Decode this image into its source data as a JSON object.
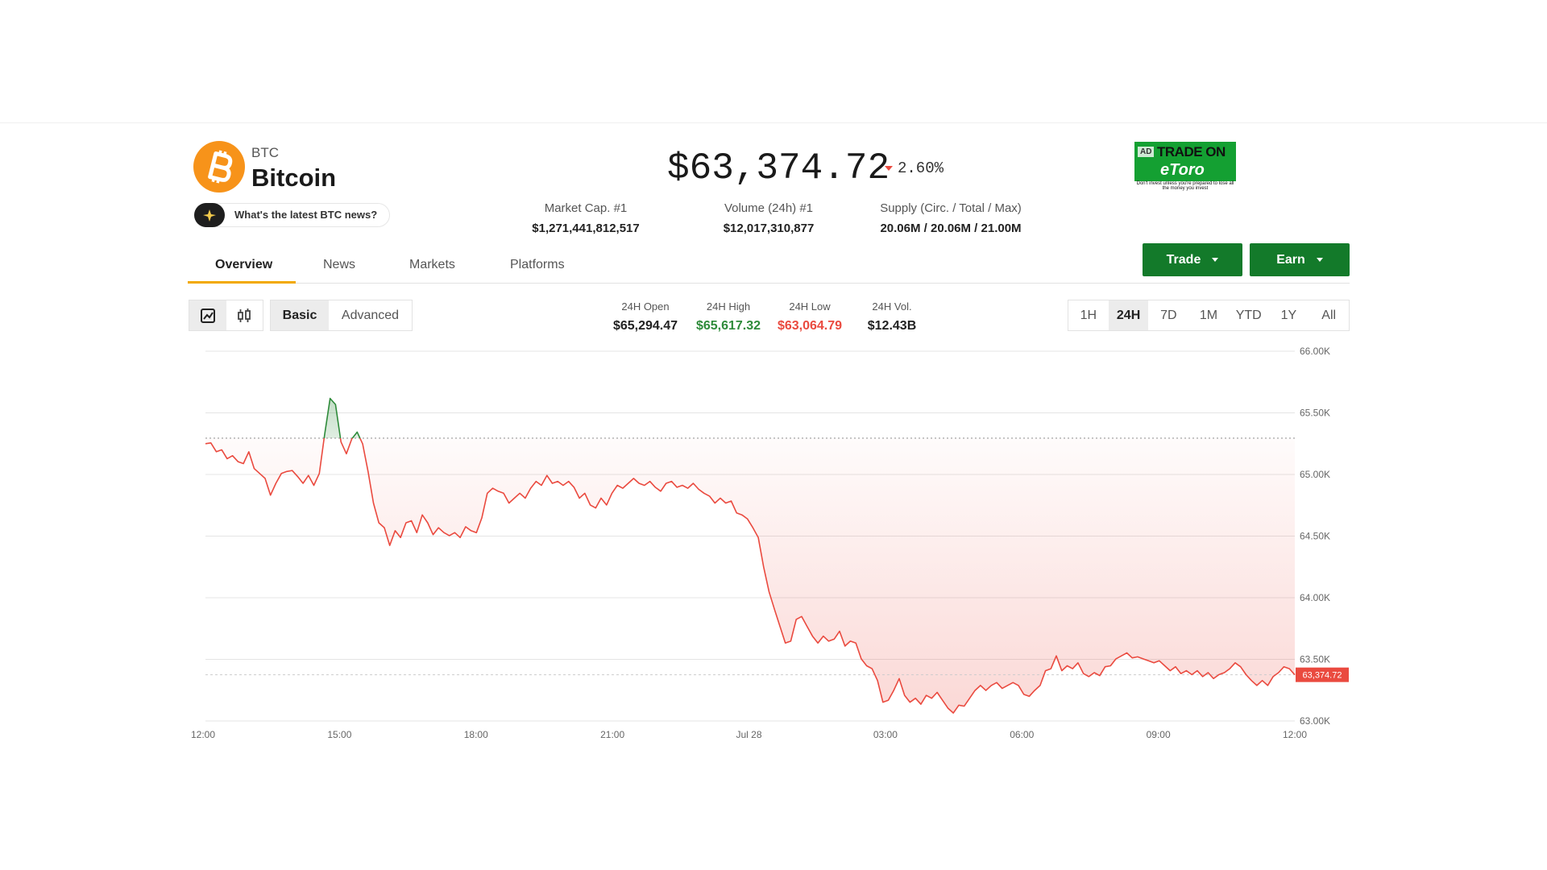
{
  "header": {
    "symbol": "BTC",
    "name": "Bitcoin",
    "news_prompt": "What's the latest BTC news?",
    "price": "$63,374.72",
    "change": "2.60%"
  },
  "ad": {
    "tag": "AD",
    "headline": "TRADE ON",
    "brand": "eToro",
    "disclaimer": "Don't invest unless you're prepared to lose all the money you invest"
  },
  "stats": [
    {
      "label": "Market Cap. #1",
      "value": "$1,271,441,812,517"
    },
    {
      "label": "Volume (24h) #1",
      "value": "$12,017,310,877"
    },
    {
      "label": "Supply (Circ. / Total / Max)",
      "value": "20.06M / 20.06M / 21.00M"
    }
  ],
  "tabs": [
    "Overview",
    "News",
    "Markets",
    "Platforms"
  ],
  "actions": [
    "Trade",
    "Earn"
  ],
  "chart_modes": [
    "Basic",
    "Advanced"
  ],
  "summary": [
    {
      "label": "24H Open",
      "value": "$65,294.47",
      "tone": "neutral"
    },
    {
      "label": "24H High",
      "value": "$65,617.32",
      "tone": "up"
    },
    {
      "label": "24H Low",
      "value": "$63,064.79",
      "tone": "down"
    },
    {
      "label": "24H Vol.",
      "value": "$12.43B",
      "tone": "neutral"
    }
  ],
  "ranges": [
    "1H",
    "24H",
    "7D",
    "1M",
    "YTD",
    "1Y",
    "All"
  ],
  "active_range": "24H",
  "chart_data": {
    "type": "line",
    "x_labels": [
      "12:00",
      "15:00",
      "18:00",
      "21:00",
      "Jul 28",
      "03:00",
      "06:00",
      "09:00",
      "12:00"
    ],
    "values": [
      65250,
      65256,
      65184,
      65200,
      65128,
      65152,
      65104,
      65088,
      65184,
      65048,
      65008,
      64968,
      64832,
      64928,
      65008,
      65024,
      65032,
      64984,
      64928,
      64992,
      64912,
      65008,
      65328,
      65617,
      65568,
      65264,
      65168,
      65288,
      65344,
      65248,
      65024,
      64768,
      64608,
      64568,
      64424,
      64544,
      64488,
      64608,
      64624,
      64528,
      64672,
      64608,
      64512,
      64568,
      64528,
      64504,
      64528,
      64488,
      64576,
      64544,
      64528,
      64648,
      64848,
      64888,
      64864,
      64848,
      64768,
      64808,
      64848,
      64808,
      64888,
      64944,
      64912,
      64992,
      64928,
      64944,
      64912,
      64944,
      64896,
      64808,
      64848,
      64752,
      64728,
      64808,
      64752,
      64848,
      64912,
      64888,
      64928,
      64968,
      64928,
      64912,
      64944,
      64896,
      64864,
      64928,
      64944,
      64896,
      64912,
      64888,
      64928,
      64880,
      64848,
      64824,
      64768,
      64808,
      64768,
      64784,
      64688,
      64672,
      64640,
      64568,
      64488,
      64248,
      64048,
      63904,
      63768,
      63632,
      63648,
      63824,
      63848,
      63768,
      63688,
      63632,
      63688,
      63648,
      63664,
      63728,
      63608,
      63648,
      63632,
      63504,
      63448,
      63424,
      63328,
      63152,
      63168,
      63248,
      63344,
      63208,
      63152,
      63184,
      63136,
      63208,
      63184,
      63232,
      63168,
      63104,
      63065,
      63128,
      63120,
      63184,
      63248,
      63288,
      63248,
      63288,
      63312,
      63264,
      63288,
      63312,
      63288,
      63216,
      63200,
      63248,
      63288,
      63408,
      63424,
      63528,
      63408,
      63448,
      63424,
      63472,
      63384,
      63360,
      63392,
      63368,
      63440,
      63448,
      63504,
      63528,
      63552,
      63512,
      63520,
      63504,
      63488,
      63472,
      63488,
      63448,
      63408,
      63440,
      63384,
      63408,
      63376,
      63408,
      63360,
      63392,
      63344,
      63376,
      63392,
      63424,
      63472,
      63440,
      63376,
      63328,
      63288,
      63328,
      63288,
      63360,
      63392,
      63440,
      63424,
      63374.72
    ],
    "open": 65294.47,
    "last": 63374.72,
    "last_label": "63,374.72",
    "ylim": [
      63000,
      66000
    ],
    "yticks": [
      {
        "value": 63000,
        "label": "63.00K"
      },
      {
        "value": 63500,
        "label": "63.50K"
      },
      {
        "value": 64000,
        "label": "64.00K"
      },
      {
        "value": 64500,
        "label": "64.50K"
      },
      {
        "value": 65000,
        "label": "65.00K"
      },
      {
        "value": 65500,
        "label": "65.50K"
      },
      {
        "value": 66000,
        "label": "66.00K"
      }
    ],
    "grid": true,
    "up_color": "#2e8b3a",
    "down_color": "#ea4a3f"
  }
}
